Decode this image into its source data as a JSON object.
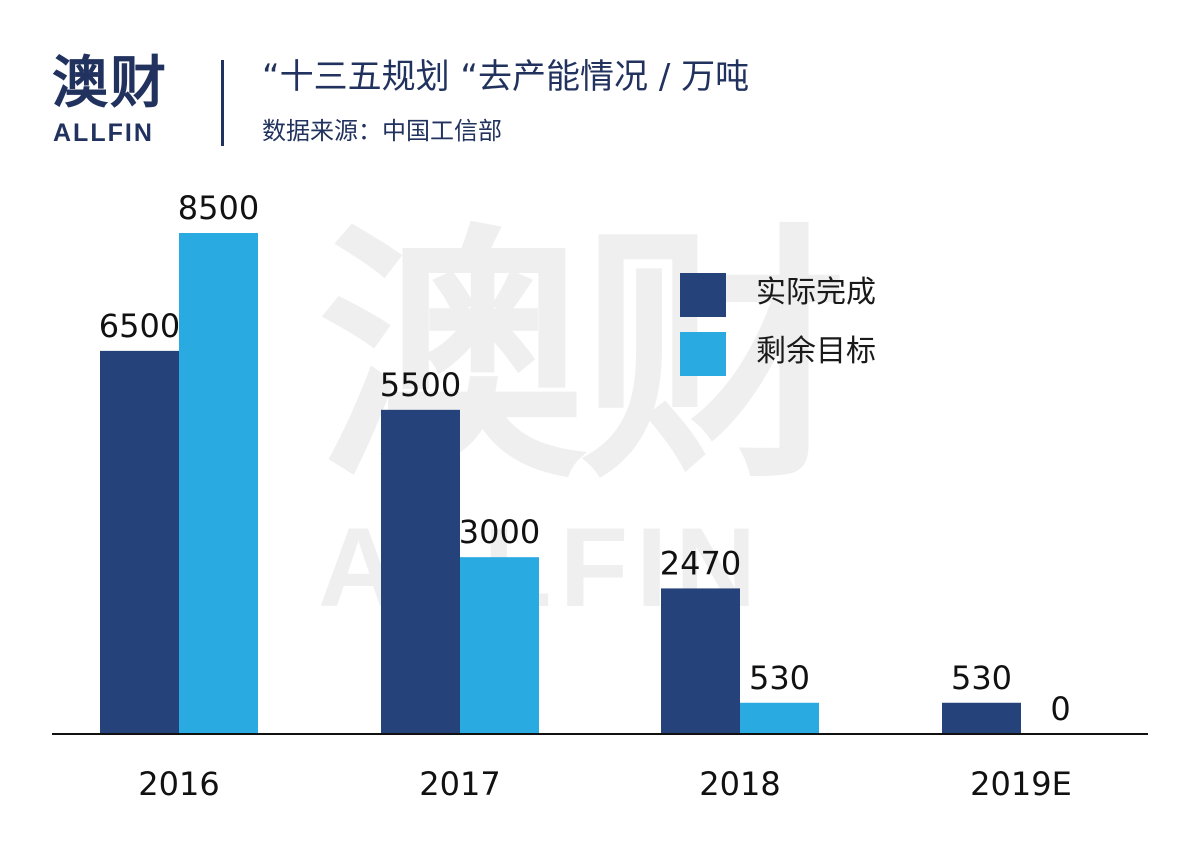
{
  "header": {
    "logo_cn": "澳财",
    "logo_en": "ALLFIN",
    "title": "“十三五规划 “去产能情况 / 万吨",
    "subtitle": "数据来源：中国工信部"
  },
  "watermark": {
    "cn": "澳财",
    "en": "ALLFIN"
  },
  "colors": {
    "brand": "#22325e",
    "series_actual": "#26427a",
    "series_remaining": "#29aae1"
  },
  "chart_data": {
    "type": "bar",
    "categories": [
      "2016",
      "2017",
      "2018",
      "2019E"
    ],
    "series": [
      {
        "name": "实际完成",
        "values": [
          6500,
          5500,
          2470,
          530
        ]
      },
      {
        "name": "剩余目标",
        "values": [
          8500,
          3000,
          530,
          0
        ]
      }
    ],
    "title": "“十三五规划 “去产能情况 / 万吨",
    "legend_position": "top-right",
    "grid": false,
    "ylim": [
      0,
      10000
    ]
  }
}
